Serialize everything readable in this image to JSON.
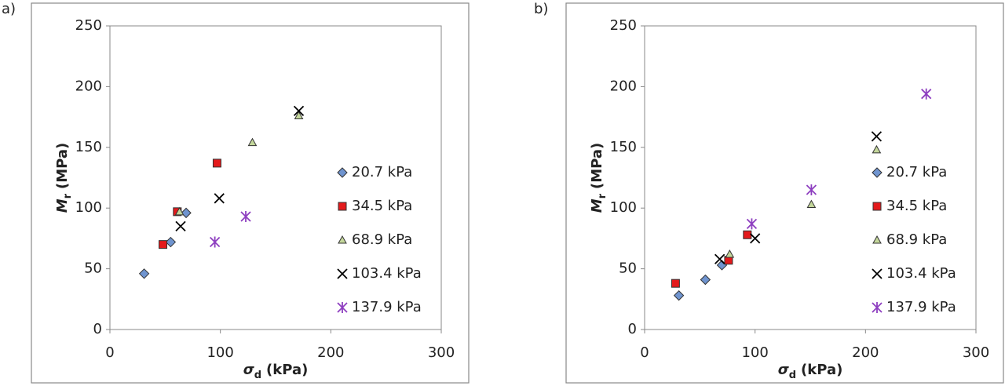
{
  "chart_data": [
    {
      "type": "scatter",
      "panel_label": "a)",
      "ylabel": {
        "symbol": "M",
        "subscript": "r",
        "unit": "(MPa)"
      },
      "xlabel": {
        "symbol": "σ",
        "subscript": "d",
        "unit": "(kPa)"
      },
      "xlim": [
        0,
        300
      ],
      "xticks": [
        0,
        100,
        200,
        300
      ],
      "ylim": [
        0,
        250
      ],
      "yticks": [
        0,
        50,
        100,
        150,
        200,
        250
      ],
      "series": [
        {
          "name": "20.7 kPa",
          "color": "#6f94cf",
          "marker": "diamond",
          "x": [
            31,
            55,
            69
          ],
          "values": [
            46,
            72,
            96
          ]
        },
        {
          "name": "34.5 kPa",
          "color": "#e41a1c",
          "marker": "square",
          "x": [
            48,
            61,
            97
          ],
          "values": [
            70,
            97,
            137
          ]
        },
        {
          "name": "68.9 kPa",
          "color": "#c4d79b",
          "marker": "triangle",
          "x": [
            63,
            129,
            171
          ],
          "values": [
            97,
            154,
            176
          ]
        },
        {
          "name": "103.4 kPa",
          "color": "#000000",
          "marker": "x",
          "x": [
            64,
            99,
            171
          ],
          "values": [
            85,
            108,
            180
          ]
        },
        {
          "name": "137.9 kPa",
          "color": "#8e3fc0",
          "marker": "star",
          "x": [
            95,
            123
          ],
          "values": [
            72,
            93
          ]
        }
      ]
    },
    {
      "type": "scatter",
      "panel_label": "b)",
      "ylabel": {
        "symbol": "M",
        "subscript": "r",
        "unit": "(MPa)"
      },
      "xlabel": {
        "symbol": "σ",
        "subscript": "d",
        "unit": "(kPa)"
      },
      "xlim": [
        0,
        300
      ],
      "xticks": [
        0,
        100,
        200,
        300
      ],
      "ylim": [
        0,
        250
      ],
      "yticks": [
        0,
        50,
        100,
        150,
        200,
        250
      ],
      "series": [
        {
          "name": "20.7 kPa",
          "color": "#6f94cf",
          "marker": "diamond",
          "x": [
            31,
            55,
            70
          ],
          "values": [
            28,
            41,
            53
          ]
        },
        {
          "name": "34.5 kPa",
          "color": "#e41a1c",
          "marker": "square",
          "x": [
            28,
            76,
            93
          ],
          "values": [
            38,
            57,
            78
          ]
        },
        {
          "name": "68.9 kPa",
          "color": "#c4d79b",
          "marker": "triangle",
          "x": [
            77,
            151,
            210
          ],
          "values": [
            62,
            103,
            148
          ]
        },
        {
          "name": "103.4 kPa",
          "color": "#000000",
          "marker": "x",
          "x": [
            68,
            100,
            210
          ],
          "values": [
            58,
            75,
            159
          ]
        },
        {
          "name": "137.9 kPa",
          "color": "#8e3fc0",
          "marker": "star",
          "x": [
            97,
            151,
            255
          ],
          "values": [
            87,
            115,
            194
          ]
        }
      ]
    }
  ]
}
